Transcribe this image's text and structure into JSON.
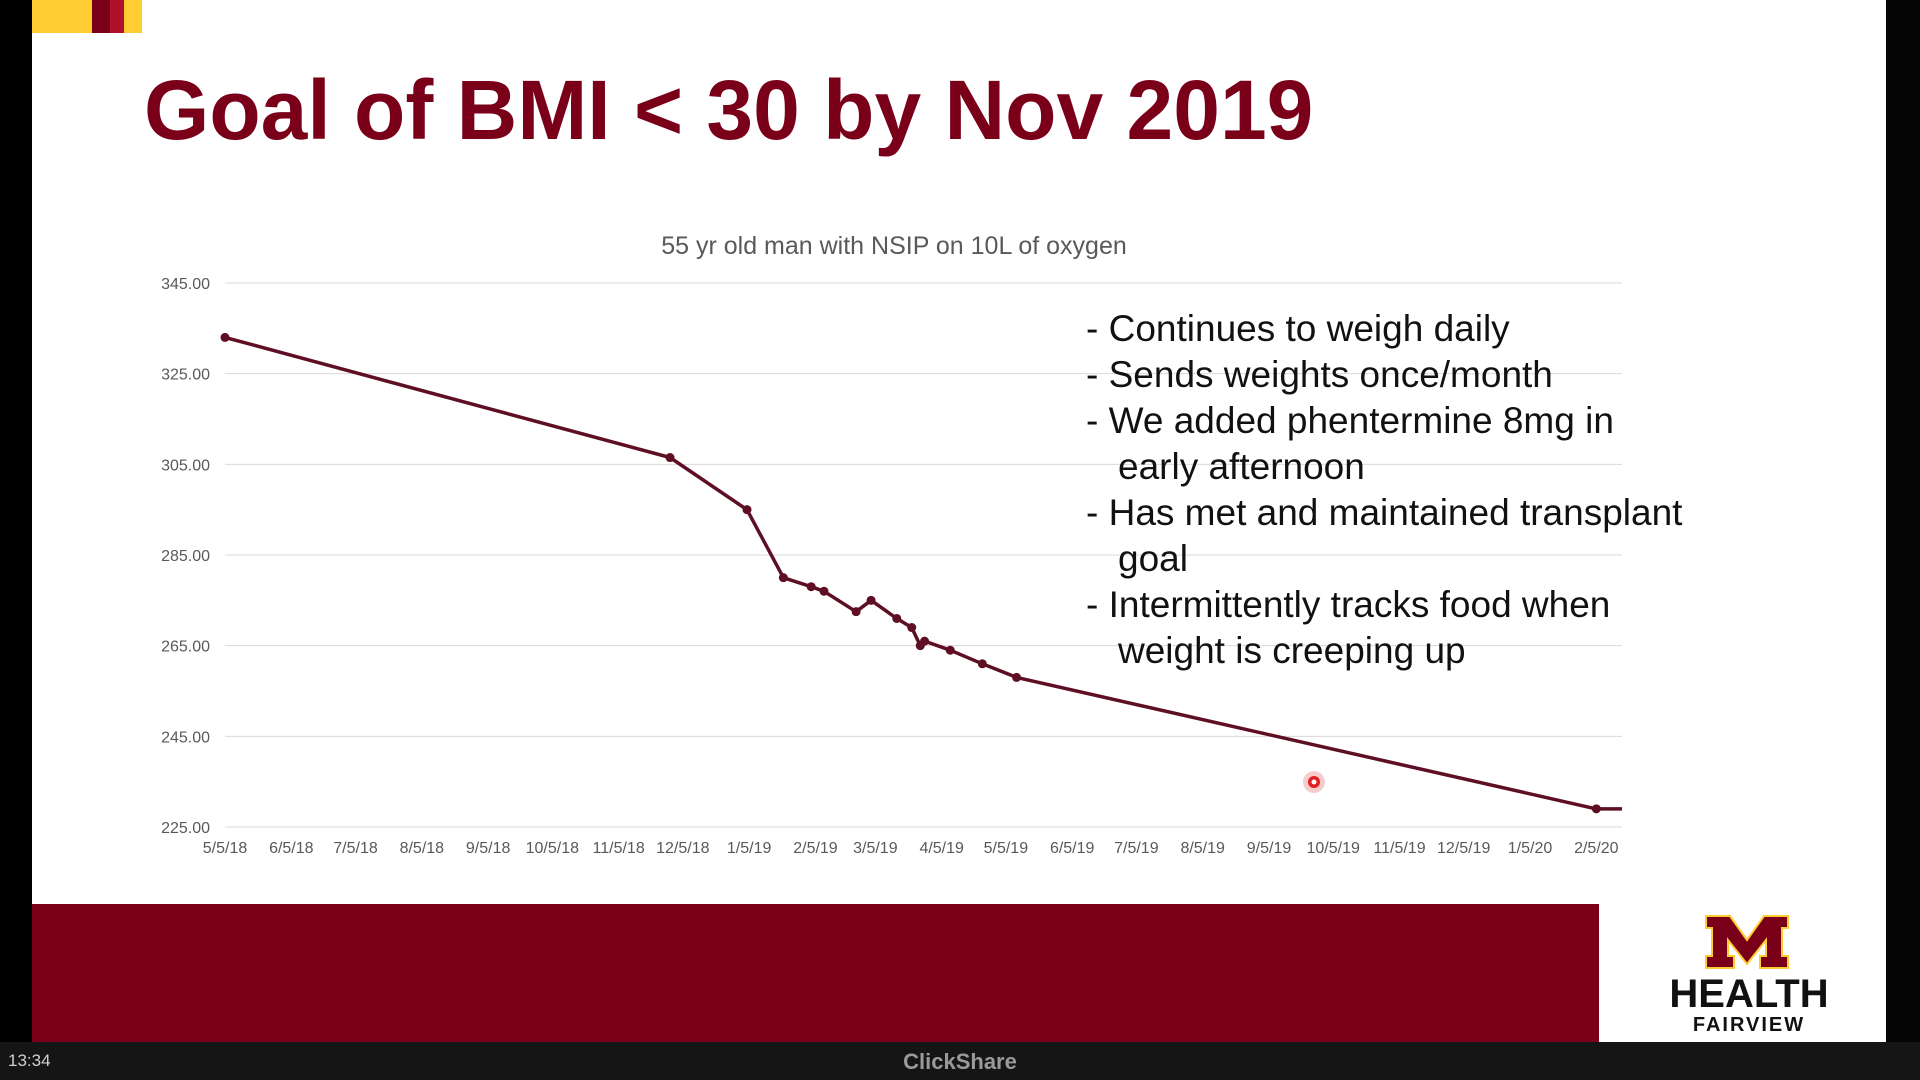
{
  "slide": {
    "title": "Goal of BMI < 30 by Nov 2019",
    "notes": [
      "Continues to weigh daily",
      "Sends weights once/month",
      "We added phentermine 8mg in early afternoon",
      "Has met and maintained transplant goal",
      "Intermittently tracks food when weight is creeping up"
    ],
    "colors": {
      "accent": "#7a0019",
      "gold": "#ffcc33",
      "line": "#5e0f23"
    }
  },
  "logo": {
    "wordmark": "HEALTH",
    "sub": "FAIRVIEW",
    "icon": "university-m-logo-icon"
  },
  "taskbar": {
    "clock": "13:34",
    "brand": "ClickShare"
  },
  "chart_data": {
    "type": "line",
    "title": "55 yr old man with NSIP on 10L of oxygen",
    "xlabel": "",
    "ylabel": "",
    "ylim": [
      225,
      345
    ],
    "yticks": [
      "345.00",
      "325.00",
      "305.00",
      "285.00",
      "265.00",
      "245.00",
      "225.00"
    ],
    "xticks": [
      "5/5/18",
      "6/5/18",
      "7/5/18",
      "8/5/18",
      "9/5/18",
      "10/5/18",
      "11/5/18",
      "12/5/18",
      "1/5/19",
      "2/5/19",
      "3/5/19",
      "4/5/19",
      "5/5/19",
      "6/5/19",
      "7/5/19",
      "8/5/19",
      "9/5/19",
      "10/5/19",
      "11/5/19",
      "12/5/19",
      "1/5/20",
      "2/5/20"
    ],
    "xlim": [
      "5/5/18",
      "2/17/20"
    ],
    "grid": true,
    "legend": "none",
    "series": [
      {
        "points": [
          {
            "x": "5/5/18",
            "y": 333
          },
          {
            "x": "11/29/18",
            "y": 306.5
          },
          {
            "x": "1/4/19",
            "y": 295
          },
          {
            "x": "1/21/19",
            "y": 280
          },
          {
            "x": "2/3/19",
            "y": 278
          },
          {
            "x": "2/9/19",
            "y": 277
          },
          {
            "x": "2/24/19",
            "y": 272.5
          },
          {
            "x": "3/3/19",
            "y": 275
          },
          {
            "x": "3/15/19",
            "y": 271
          },
          {
            "x": "3/22/19",
            "y": 269
          },
          {
            "x": "3/26/19",
            "y": 265
          },
          {
            "x": "3/28/19",
            "y": 266
          },
          {
            "x": "4/9/19",
            "y": 264
          },
          {
            "x": "4/24/19",
            "y": 261
          },
          {
            "x": "5/10/19",
            "y": 258
          },
          {
            "x": "2/5/20",
            "y": 229
          },
          {
            "x": "2/17/20",
            "y": 229
          }
        ]
      }
    ]
  }
}
